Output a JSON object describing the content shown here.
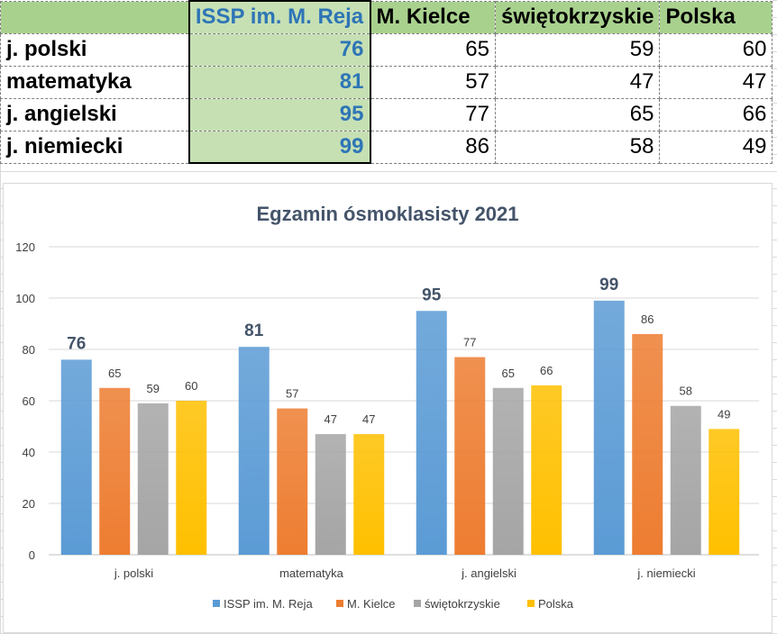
{
  "table": {
    "headers": [
      "",
      "ISSP im. M. Reja",
      "M. Kielce",
      "świętokrzyskie",
      "Polska"
    ],
    "rows": [
      {
        "label": "j. polski",
        "values": [
          "76",
          "65",
          "59",
          "60"
        ]
      },
      {
        "label": "matematyka",
        "values": [
          "81",
          "57",
          "47",
          "47"
        ]
      },
      {
        "label": "j. angielski",
        "values": [
          "95",
          "77",
          "65",
          "66"
        ]
      },
      {
        "label": "j. niemiecki",
        "values": [
          "99",
          "86",
          "58",
          "49"
        ]
      }
    ]
  },
  "chart_data": {
    "type": "bar",
    "title": "Egzamin ósmoklasisty 2021",
    "categories": [
      "j. polski",
      "matematyka",
      "j. angielski",
      "j. niemiecki"
    ],
    "series": [
      {
        "name": "ISSP im. M. Reja",
        "values": [
          76,
          81,
          95,
          99
        ],
        "color": "#5b9bd5"
      },
      {
        "name": "M. Kielce",
        "values": [
          65,
          57,
          77,
          86
        ],
        "color": "#ed7d31"
      },
      {
        "name": "świętokrzyskie",
        "values": [
          59,
          47,
          65,
          58
        ],
        "color": "#a5a5a5"
      },
      {
        "name": "Polska",
        "values": [
          60,
          47,
          66,
          49
        ],
        "color": "#ffc000"
      }
    ],
    "ylim": [
      0,
      120
    ],
    "yticks": [
      0,
      20,
      40,
      60,
      80,
      100,
      120
    ],
    "grid": true,
    "legend": "bottom",
    "data_labels": true
  },
  "colors": {
    "header_green": "#a9d18e",
    "highlight_green": "#c6e0b4",
    "highlight_text": "#2e75b6",
    "title_text": "#44546a"
  }
}
